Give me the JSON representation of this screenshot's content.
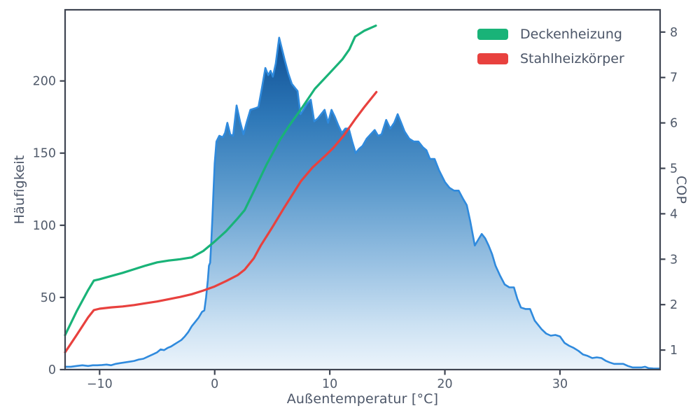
{
  "figure": {
    "background": "#ffffff"
  },
  "colors": {
    "histogram_line": "#2f8add",
    "gradient_top": "#0b4886",
    "gradient_bottom": "#ecf4fb",
    "series_green": "#19b378",
    "series_red": "#e8413e",
    "axis_spine": "#3f4552",
    "tick_text": "#515b6b"
  },
  "legend": {
    "items": [
      {
        "label": "Deckenheizung",
        "color": "#19b378"
      },
      {
        "label": "Stahlheizkörper",
        "color": "#e8413e"
      }
    ]
  },
  "chart_data": {
    "type": "area+line",
    "title": "",
    "xlabel": "Außentemperatur [°C]",
    "ylabel_left": "Häufigkeit",
    "ylabel_right": "COP",
    "grid": false,
    "legend_position": "upper right",
    "xlim": [
      -13.0,
      38.7
    ],
    "ylim_left": [
      0,
      249.3
    ],
    "ylim_right": [
      0.57,
      8.49
    ],
    "x_ticks": [
      -10,
      0,
      10,
      20,
      30
    ],
    "y_left_ticks": [
      0,
      50,
      100,
      150,
      200
    ],
    "y_right_ticks": [
      1,
      2,
      3,
      4,
      5,
      6,
      7,
      8
    ],
    "histogram": {
      "name": "Häufigkeit",
      "axis": "left",
      "line_color": "#2f8add",
      "points": [
        [
          -13.0,
          2
        ],
        [
          -12.5,
          2
        ],
        [
          -12.0,
          2.5
        ],
        [
          -11.5,
          3
        ],
        [
          -11.0,
          2.5
        ],
        [
          -10.6,
          3
        ],
        [
          -10.2,
          3
        ],
        [
          -9.8,
          3.2
        ],
        [
          -9.4,
          3.5
        ],
        [
          -9.0,
          3
        ],
        [
          -8.6,
          4
        ],
        [
          -8.2,
          4.5
        ],
        [
          -7.8,
          5
        ],
        [
          -7.4,
          5.5
        ],
        [
          -7.0,
          6
        ],
        [
          -6.6,
          7
        ],
        [
          -6.2,
          7.5
        ],
        [
          -5.8,
          9
        ],
        [
          -5.4,
          10.5
        ],
        [
          -5.0,
          12
        ],
        [
          -4.7,
          14
        ],
        [
          -4.4,
          13.5
        ],
        [
          -4.1,
          15
        ],
        [
          -3.8,
          16
        ],
        [
          -3.5,
          17.5
        ],
        [
          -3.2,
          19
        ],
        [
          -2.9,
          20.5
        ],
        [
          -2.6,
          23
        ],
        [
          -2.3,
          26
        ],
        [
          -2.0,
          30
        ],
        [
          -1.7,
          33
        ],
        [
          -1.4,
          36
        ],
        [
          -1.1,
          40
        ],
        [
          -0.9,
          41
        ],
        [
          -0.75,
          50
        ],
        [
          -0.6,
          62
        ],
        [
          -0.5,
          72
        ],
        [
          -0.4,
          74
        ],
        [
          -0.3,
          88
        ],
        [
          -0.2,
          105
        ],
        [
          -0.1,
          125
        ],
        [
          0.0,
          143
        ],
        [
          0.15,
          158
        ],
        [
          0.4,
          162
        ],
        [
          0.7,
          161
        ],
        [
          0.9,
          164
        ],
        [
          1.1,
          171
        ],
        [
          1.35,
          163
        ],
        [
          1.6,
          162
        ],
        [
          1.9,
          183
        ],
        [
          2.2,
          172
        ],
        [
          2.5,
          163
        ],
        [
          2.8,
          172
        ],
        [
          3.1,
          180
        ],
        [
          3.5,
          181
        ],
        [
          3.8,
          182
        ],
        [
          4.1,
          195
        ],
        [
          4.4,
          209
        ],
        [
          4.65,
          204
        ],
        [
          4.85,
          207
        ],
        [
          5.05,
          203
        ],
        [
          5.3,
          212
        ],
        [
          5.6,
          230
        ],
        [
          5.85,
          222
        ],
        [
          6.1,
          214
        ],
        [
          6.4,
          205
        ],
        [
          6.7,
          198
        ],
        [
          7.0,
          195
        ],
        [
          7.2,
          193
        ],
        [
          7.45,
          177
        ],
        [
          7.7,
          180
        ],
        [
          8.0,
          184
        ],
        [
          8.35,
          187
        ],
        [
          8.65,
          172
        ],
        [
          8.95,
          174
        ],
        [
          9.25,
          177
        ],
        [
          9.55,
          180
        ],
        [
          9.85,
          171
        ],
        [
          10.15,
          180
        ],
        [
          10.45,
          175
        ],
        [
          10.75,
          169
        ],
        [
          11.05,
          164
        ],
        [
          11.35,
          167
        ],
        [
          11.65,
          167
        ],
        [
          11.95,
          158
        ],
        [
          12.25,
          150
        ],
        [
          12.55,
          153
        ],
        [
          12.85,
          155
        ],
        [
          13.2,
          160
        ],
        [
          13.55,
          163
        ],
        [
          13.9,
          166
        ],
        [
          14.2,
          162
        ],
        [
          14.5,
          163
        ],
        [
          14.9,
          173
        ],
        [
          15.25,
          167
        ],
        [
          15.6,
          171
        ],
        [
          15.9,
          177
        ],
        [
          16.2,
          171
        ],
        [
          16.5,
          165
        ],
        [
          16.9,
          160
        ],
        [
          17.3,
          158
        ],
        [
          17.7,
          158
        ],
        [
          18.1,
          154
        ],
        [
          18.4,
          152
        ],
        [
          18.7,
          146
        ],
        [
          19.1,
          146
        ],
        [
          19.5,
          138
        ],
        [
          20.0,
          130
        ],
        [
          20.4,
          126
        ],
        [
          20.8,
          124
        ],
        [
          21.2,
          124
        ],
        [
          21.6,
          118
        ],
        [
          21.9,
          114
        ],
        [
          22.2,
          103
        ],
        [
          22.6,
          86
        ],
        [
          22.9,
          90
        ],
        [
          23.2,
          94
        ],
        [
          23.5,
          91
        ],
        [
          23.8,
          86
        ],
        [
          24.1,
          80
        ],
        [
          24.4,
          72
        ],
        [
          24.8,
          65
        ],
        [
          25.2,
          59
        ],
        [
          25.6,
          57
        ],
        [
          26.0,
          57
        ],
        [
          26.3,
          49
        ],
        [
          26.6,
          43
        ],
        [
          27.0,
          42
        ],
        [
          27.4,
          42
        ],
        [
          27.8,
          34
        ],
        [
          28.1,
          31
        ],
        [
          28.4,
          28
        ],
        [
          28.8,
          25
        ],
        [
          29.2,
          23.5
        ],
        [
          29.6,
          24
        ],
        [
          30.0,
          23
        ],
        [
          30.4,
          18.5
        ],
        [
          30.8,
          16.5
        ],
        [
          31.2,
          15
        ],
        [
          31.6,
          13
        ],
        [
          32.0,
          10.5
        ],
        [
          32.4,
          9.5
        ],
        [
          32.8,
          8
        ],
        [
          33.2,
          8.5
        ],
        [
          33.6,
          8
        ],
        [
          34.0,
          6
        ],
        [
          34.3,
          5
        ],
        [
          34.7,
          4
        ],
        [
          35.1,
          4
        ],
        [
          35.5,
          4
        ],
        [
          35.9,
          2.5
        ],
        [
          36.3,
          1.5
        ],
        [
          36.7,
          1.5
        ],
        [
          37.1,
          1.5
        ],
        [
          37.4,
          2
        ],
        [
          37.7,
          1
        ],
        [
          38.1,
          0.8
        ],
        [
          38.66,
          0.7
        ]
      ]
    },
    "series": [
      {
        "name": "Deckenheizung",
        "axis": "right",
        "color": "#19b378",
        "points": [
          [
            -13.0,
            1.33
          ],
          [
            -12.0,
            1.85
          ],
          [
            -11.0,
            2.32
          ],
          [
            -10.5,
            2.53
          ],
          [
            -10.0,
            2.56
          ],
          [
            -9.0,
            2.63
          ],
          [
            -8.0,
            2.7
          ],
          [
            -7.0,
            2.78
          ],
          [
            -6.0,
            2.86
          ],
          [
            -5.0,
            2.93
          ],
          [
            -4.0,
            2.97
          ],
          [
            -3.0,
            3.0
          ],
          [
            -2.0,
            3.04
          ],
          [
            -1.0,
            3.18
          ],
          [
            0.0,
            3.39
          ],
          [
            1.0,
            3.62
          ],
          [
            2.0,
            3.9
          ],
          [
            2.6,
            4.08
          ],
          [
            3.5,
            4.55
          ],
          [
            4.5,
            5.08
          ],
          [
            5.65,
            5.62
          ],
          [
            6.5,
            5.95
          ],
          [
            7.5,
            6.3
          ],
          [
            8.7,
            6.75
          ],
          [
            10.0,
            7.1
          ],
          [
            11.1,
            7.4
          ],
          [
            11.7,
            7.62
          ],
          [
            12.2,
            7.9
          ],
          [
            13.0,
            8.03
          ],
          [
            14.0,
            8.14
          ]
        ]
      },
      {
        "name": "Stahlheizkörper",
        "axis": "right",
        "color": "#e8413e",
        "points": [
          [
            -13.0,
            0.95
          ],
          [
            -12.0,
            1.33
          ],
          [
            -11.0,
            1.72
          ],
          [
            -10.5,
            1.88
          ],
          [
            -10.0,
            1.91
          ],
          [
            -9.0,
            1.94
          ],
          [
            -8.0,
            1.96
          ],
          [
            -7.0,
            1.99
          ],
          [
            -6.0,
            2.03
          ],
          [
            -5.0,
            2.07
          ],
          [
            -4.0,
            2.12
          ],
          [
            -3.0,
            2.17
          ],
          [
            -2.0,
            2.23
          ],
          [
            -1.0,
            2.31
          ],
          [
            0.0,
            2.4
          ],
          [
            1.0,
            2.52
          ],
          [
            2.0,
            2.65
          ],
          [
            2.6,
            2.77
          ],
          [
            3.4,
            3.02
          ],
          [
            4.0,
            3.3
          ],
          [
            5.0,
            3.7
          ],
          [
            6.0,
            4.12
          ],
          [
            7.0,
            4.52
          ],
          [
            7.5,
            4.72
          ],
          [
            8.5,
            5.02
          ],
          [
            9.7,
            5.3
          ],
          [
            10.3,
            5.45
          ],
          [
            11.2,
            5.72
          ],
          [
            11.7,
            5.9
          ],
          [
            12.2,
            6.08
          ],
          [
            13.0,
            6.35
          ],
          [
            14.05,
            6.68
          ]
        ]
      }
    ]
  }
}
